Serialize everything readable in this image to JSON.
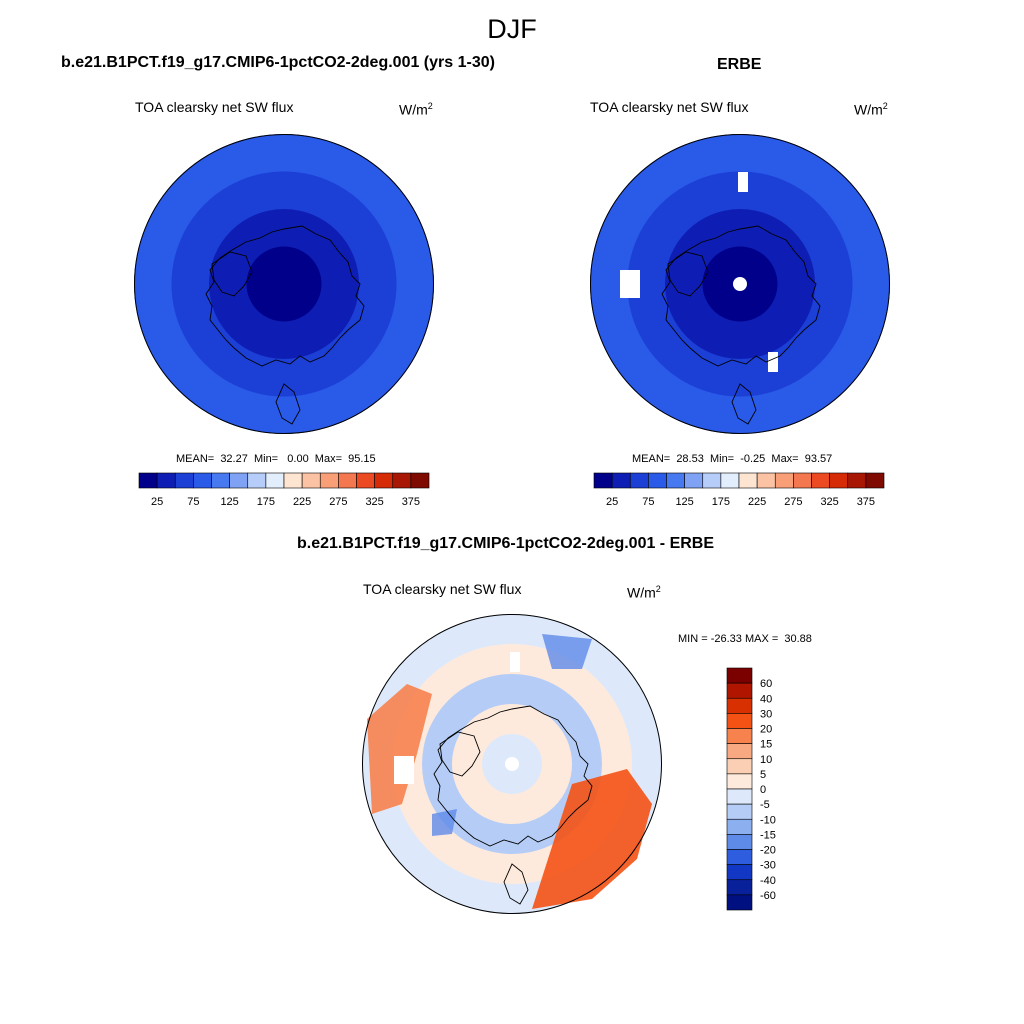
{
  "season": "DJF",
  "panels": [
    {
      "title": "b.e21.B1PCT.f19_g17.CMIP6-1pctCO2-2deg.001 (yrs 1-30)",
      "variable": "TOA clearsky net SW flux",
      "units_base": "W/m",
      "units_exp": "2",
      "stats": "MEAN=  32.27  Min=   0.00  Max=  95.15"
    },
    {
      "title": "ERBE",
      "variable": "TOA clearsky net SW flux",
      "units_base": "W/m",
      "units_exp": "2",
      "stats": "MEAN=  28.53  Min=  -0.25  Max=  93.57"
    }
  ],
  "field_colorbar": {
    "colors": [
      "#00008b",
      "#0e1eb4",
      "#1c3fd6",
      "#2a5ae8",
      "#4779f0",
      "#7fa2f5",
      "#b6cdf9",
      "#e3eefd",
      "#fde5d2",
      "#fbc3a4",
      "#f89f78",
      "#f3784f",
      "#ec4a22",
      "#d52b07",
      "#a81704",
      "#7e0a02"
    ],
    "labels": [
      "25",
      "75",
      "125",
      "175",
      "225",
      "275",
      "325",
      "375"
    ]
  },
  "difference": {
    "title": "b.e21.B1PCT.f19_g17.CMIP6-1pctCO2-2deg.001 - ERBE",
    "variable": "TOA clearsky net SW flux",
    "units_base": "W/m",
    "units_exp": "2",
    "stats": "MIN = -26.33 MAX =  30.88",
    "colorbar": {
      "labels_top_to_bottom": [
        "60",
        "40",
        "30",
        "20",
        "15",
        "10",
        "5",
        "0",
        "-5",
        "-10",
        "-15",
        "-20",
        "-30",
        "-40",
        "-60"
      ],
      "colors_top_to_bottom": [
        "#7b0000",
        "#b01500",
        "#d83000",
        "#f45214",
        "#f7824e",
        "#f9a982",
        "#fbcfb3",
        "#fdeadc",
        "#dde9fb",
        "#b5cdf6",
        "#8cafef",
        "#5e8ae8",
        "#2f5de0",
        "#1237c4",
        "#08209a",
        "#001080"
      ]
    }
  }
}
